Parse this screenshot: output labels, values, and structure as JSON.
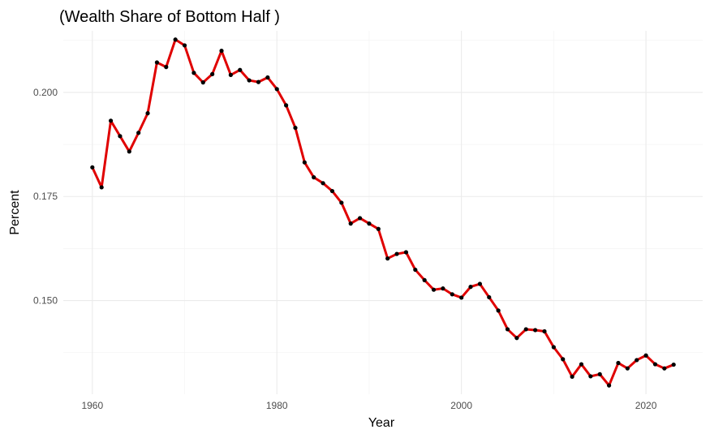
{
  "chart_data": {
    "type": "line",
    "title": "(Wealth Share of Bottom Half )",
    "xlabel": "Year",
    "ylabel": "Percent",
    "xlim": [
      1957.2,
      1965.8
    ],
    "ylim": [
      0.1275,
      0.2148
    ],
    "x_ticks": [
      1960,
      1980,
      2000,
      2020
    ],
    "x_tick_labels": [
      "1960",
      "1980",
      "2000",
      "2020"
    ],
    "y_ticks": [
      0.15,
      0.175,
      0.2
    ],
    "y_tick_labels": [
      "0.150",
      "0.175",
      "0.200"
    ],
    "grid": true,
    "line_color": "#e00000",
    "point_color": "#000000",
    "series": [
      {
        "x": [
          1960,
          1961,
          1962,
          1963,
          1964,
          1965,
          1966,
          1967,
          1968,
          1969,
          1970,
          1971,
          1972,
          1973,
          1974,
          1975,
          1976,
          1977,
          1978,
          1979,
          1980,
          1981,
          1982,
          1983,
          1984,
          1985,
          1986,
          1987,
          1988,
          1989,
          1990,
          1991,
          1992,
          1993,
          1994,
          1995,
          1996,
          1997,
          1998,
          1999,
          2000,
          2001,
          2002,
          2003,
          2004,
          2005,
          2006,
          2007,
          2008,
          2009,
          2010,
          2011,
          2012,
          2013,
          2014,
          2015,
          2016,
          2017,
          2018,
          2019,
          2020,
          2021,
          2022,
          2023
        ],
        "values": [
          0.182,
          0.1772,
          0.1932,
          0.1895,
          0.1858,
          0.1903,
          0.195,
          0.2072,
          0.2061,
          0.2127,
          0.2113,
          0.2047,
          0.2024,
          0.2044,
          0.21,
          0.2042,
          0.2054,
          0.2029,
          0.2025,
          0.2036,
          0.2008,
          0.1969,
          0.1915,
          0.1832,
          0.1796,
          0.1782,
          0.1763,
          0.1735,
          0.1685,
          0.1698,
          0.1685,
          0.1672,
          0.1601,
          0.1612,
          0.1616,
          0.1574,
          0.1549,
          0.1526,
          0.1529,
          0.1515,
          0.1507,
          0.1533,
          0.154,
          0.1508,
          0.1476,
          0.1431,
          0.141,
          0.1431,
          0.1429,
          0.1426,
          0.1388,
          0.1359,
          0.1317,
          0.1347,
          0.1318,
          0.1323,
          0.1296,
          0.135,
          0.1337,
          0.1357,
          0.1368,
          0.1347,
          0.1337,
          0.1346
        ]
      }
    ]
  }
}
